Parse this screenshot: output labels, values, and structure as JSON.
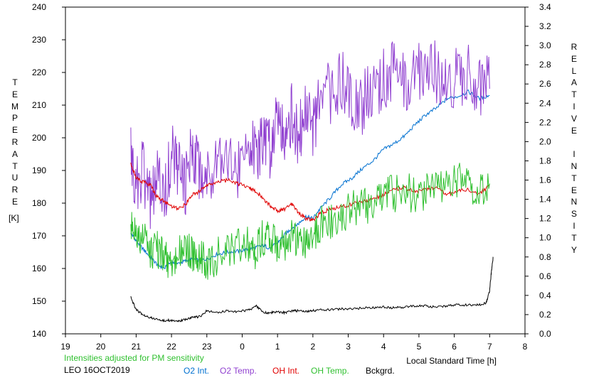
{
  "chart_data": {
    "type": "line",
    "xlabel": "Local Standard Time [h]",
    "ylabel_left": "TEMPERATURE",
    "ylabel_left_unit": "[K]",
    "ylabel_right": "RELATIVE INTENSITY",
    "x_ticks": [
      "19",
      "20",
      "21",
      "22",
      "23",
      "0",
      "1",
      "2",
      "3",
      "4",
      "5",
      "6",
      "7",
      "8"
    ],
    "x_range_hours": [
      19,
      32
    ],
    "ylim_left": [
      140,
      240
    ],
    "y_ticks_left": [
      "140",
      "150",
      "160",
      "170",
      "180",
      "190",
      "200",
      "210",
      "220",
      "230",
      "240"
    ],
    "ylim_right": [
      0.0,
      3.4
    ],
    "y_ticks_right": [
      "0.0",
      "0.2",
      "0.4",
      "0.6",
      "0.8",
      "1.0",
      "1.2",
      "1.4",
      "1.6",
      "1.8",
      "2.0",
      "2.2",
      "2.4",
      "2.6",
      "2.8",
      "3.0",
      "3.2",
      "3.4"
    ],
    "grid": false,
    "series": [
      {
        "name": "O2 Int.",
        "axis": "right",
        "color": "#0070d0",
        "x": [
          20.85,
          21.0,
          21.2,
          21.4,
          21.6,
          21.8,
          22.0,
          22.2,
          22.4,
          22.6,
          22.8,
          23.0,
          23.3,
          23.6,
          23.9,
          24.2,
          24.4,
          24.6,
          24.8,
          25.0,
          25.2,
          25.4,
          25.6,
          25.8,
          26.0,
          26.2,
          26.5,
          26.8,
          27.1,
          27.4,
          27.7,
          28.0,
          28.3,
          28.6,
          28.9,
          29.2,
          29.5,
          29.8,
          30.1,
          30.4,
          30.7,
          31.0
        ],
        "y": [
          1.05,
          0.97,
          0.88,
          0.8,
          0.72,
          0.68,
          0.75,
          0.73,
          0.76,
          0.78,
          0.76,
          0.78,
          0.83,
          0.85,
          0.86,
          0.88,
          0.9,
          0.92,
          0.89,
          0.95,
          1.03,
          1.1,
          1.15,
          1.22,
          1.2,
          1.3,
          1.42,
          1.55,
          1.62,
          1.72,
          1.8,
          1.92,
          1.98,
          2.06,
          2.18,
          2.28,
          2.35,
          2.45,
          2.47,
          2.52,
          2.45,
          2.48
        ]
      },
      {
        "name": "O2 Temp.",
        "axis": "left",
        "color": "#9040d0",
        "x": [
          20.85,
          21.0,
          21.2,
          21.4,
          21.6,
          21.8,
          22.0,
          22.2,
          22.4,
          22.6,
          22.8,
          23.0,
          23.3,
          23.6,
          23.9,
          24.2,
          24.4,
          24.6,
          24.8,
          25.0,
          25.2,
          25.4,
          25.6,
          25.8,
          26.0,
          26.2,
          26.5,
          26.8,
          27.1,
          27.4,
          27.7,
          28.0,
          28.3,
          28.6,
          28.9,
          29.2,
          29.5,
          29.8,
          30.1,
          30.4,
          30.7,
          31.0
        ],
        "y": [
          194,
          185,
          190,
          180,
          187,
          182,
          196,
          190,
          185,
          198,
          190,
          188,
          196,
          195,
          189,
          201,
          192,
          199,
          197,
          210,
          202,
          207,
          200,
          209,
          203,
          210,
          214,
          217,
          213,
          210,
          215,
          218,
          220,
          216,
          219,
          223,
          220,
          218,
          218,
          221,
          216,
          215
        ]
      },
      {
        "name": "OH Int.",
        "axis": "right",
        "color": "#e00000",
        "x": [
          20.85,
          21.0,
          21.2,
          21.4,
          21.6,
          21.8,
          22.0,
          22.2,
          22.4,
          22.6,
          22.8,
          23.0,
          23.3,
          23.6,
          23.9,
          24.2,
          24.4,
          24.6,
          24.8,
          25.0,
          25.2,
          25.4,
          25.6,
          25.8,
          26.0,
          26.2,
          26.5,
          26.8,
          27.1,
          27.4,
          27.7,
          28.0,
          28.3,
          28.6,
          28.9,
          29.2,
          29.5,
          29.8,
          30.1,
          30.4,
          30.7,
          31.0
        ],
        "y": [
          1.78,
          1.62,
          1.58,
          1.55,
          1.42,
          1.38,
          1.32,
          1.3,
          1.35,
          1.45,
          1.48,
          1.55,
          1.58,
          1.6,
          1.56,
          1.52,
          1.48,
          1.4,
          1.33,
          1.28,
          1.3,
          1.35,
          1.25,
          1.2,
          1.18,
          1.25,
          1.3,
          1.32,
          1.35,
          1.38,
          1.4,
          1.45,
          1.5,
          1.52,
          1.48,
          1.5,
          1.52,
          1.45,
          1.48,
          1.5,
          1.45,
          1.55
        ]
      },
      {
        "name": "OH Temp.",
        "axis": "left",
        "color": "#30c030",
        "x": [
          20.85,
          21.0,
          21.2,
          21.4,
          21.6,
          21.8,
          22.0,
          22.2,
          22.4,
          22.6,
          22.8,
          23.0,
          23.3,
          23.6,
          23.9,
          24.2,
          24.4,
          24.6,
          24.8,
          25.0,
          25.2,
          25.4,
          25.6,
          25.8,
          26.0,
          26.2,
          26.5,
          26.8,
          27.1,
          27.4,
          27.7,
          28.0,
          28.3,
          28.6,
          28.9,
          29.2,
          29.5,
          29.8,
          30.1,
          30.4,
          30.7,
          31.0
        ],
        "y": [
          175,
          172,
          169,
          165,
          166,
          163,
          162,
          165,
          166,
          164,
          163,
          162,
          164,
          166,
          168,
          167,
          165,
          170,
          168,
          168,
          166,
          170,
          168,
          167,
          170,
          173,
          175,
          177,
          178,
          179,
          180,
          182,
          183,
          184,
          182,
          184,
          186,
          185,
          187,
          186,
          184,
          186
        ]
      },
      {
        "name": "Bckgrd.",
        "axis": "right",
        "color": "#000000",
        "x": [
          20.85,
          21.0,
          21.2,
          21.4,
          21.6,
          21.8,
          22.0,
          22.2,
          22.4,
          22.6,
          22.8,
          23.0,
          23.3,
          23.6,
          23.9,
          24.2,
          24.4,
          24.6,
          24.8,
          25.0,
          25.2,
          25.4,
          25.6,
          25.8,
          26.0,
          26.2,
          26.5,
          26.8,
          27.1,
          27.4,
          27.7,
          28.0,
          28.3,
          28.6,
          28.9,
          29.2,
          29.5,
          29.8,
          30.1,
          30.4,
          30.7,
          30.9,
          31.0,
          31.05,
          31.1
        ],
        "y": [
          0.38,
          0.25,
          0.2,
          0.17,
          0.15,
          0.14,
          0.14,
          0.13,
          0.15,
          0.17,
          0.18,
          0.24,
          0.22,
          0.24,
          0.23,
          0.25,
          0.29,
          0.22,
          0.22,
          0.23,
          0.22,
          0.24,
          0.24,
          0.23,
          0.24,
          0.25,
          0.25,
          0.26,
          0.26,
          0.27,
          0.27,
          0.28,
          0.27,
          0.28,
          0.29,
          0.29,
          0.28,
          0.29,
          0.3,
          0.3,
          0.3,
          0.32,
          0.45,
          0.65,
          0.8
        ]
      }
    ],
    "annotation": "Intensities adjusted for PM sensitivity",
    "annotation_color": "#30c030",
    "station_label": "LEO 16OCT2019"
  }
}
